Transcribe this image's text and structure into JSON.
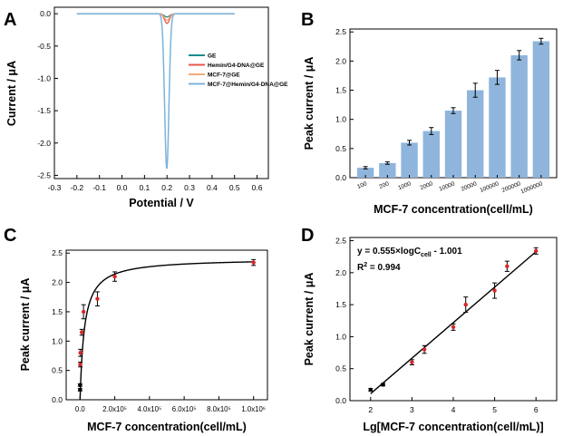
{
  "chart_data": [
    {
      "panel": "A",
      "type": "line",
      "xlabel": "Potential / V",
      "ylabel": "Current / μA",
      "xlim": [
        -0.3,
        0.65
      ],
      "ylim": [
        -2.55,
        0.1
      ],
      "xticks": [
        -0.3,
        -0.2,
        -0.1,
        0.0,
        0.1,
        0.2,
        0.3,
        0.4,
        0.5,
        0.6
      ],
      "xtick_labels": [
        "-0.3",
        "-0.2",
        "-0.1",
        "0.0",
        "0.1",
        "0.2",
        "0.3",
        "0.4",
        "0.5",
        "0.6"
      ],
      "yticks": [
        0.0,
        -0.5,
        -1.0,
        -1.5,
        -2.0,
        -2.5
      ],
      "ytick_labels": [
        "0.0",
        "-0.5",
        "-1.0",
        "-1.5",
        "-2.0",
        "-2.5"
      ],
      "legend_position": "right",
      "series": [
        {
          "name": "GE",
          "color": "#1f8a8a",
          "x_range": [
            -0.2,
            0.5
          ],
          "peak_x": 0.2,
          "peak_y": -0.05,
          "width": 0.012
        },
        {
          "name": "Hemin/G4-DNA@GE",
          "color": "#e8564b",
          "x_range": [
            -0.2,
            0.5
          ],
          "peak_x": 0.2,
          "peak_y": -0.15,
          "width": 0.011
        },
        {
          "name": "MCF-7@GE",
          "color": "#f4a978",
          "x_range": [
            -0.2,
            0.5
          ],
          "peak_x": 0.2,
          "peak_y": -0.1,
          "width": 0.011
        },
        {
          "name": "MCF-7@Hemin/G4-DNA@GE",
          "color": "#7ab3dd",
          "x_range": [
            -0.2,
            0.5
          ],
          "peak_x": 0.199,
          "peak_y": -2.4,
          "width": 0.0095
        }
      ]
    },
    {
      "panel": "B",
      "type": "bar",
      "xlabel": "MCF-7 concentration(cell/mL)",
      "ylabel": "Peak current / μA",
      "ylim": [
        0,
        2.55
      ],
      "yticks": [
        0.0,
        0.5,
        1.0,
        1.5,
        2.0,
        2.5
      ],
      "ytick_labels": [
        "0.0",
        "0.5",
        "1.0",
        "1.5",
        "2.0",
        "2.5"
      ],
      "categories": [
        "100",
        "200",
        "1000",
        "2000",
        "10000",
        "20000",
        "100000",
        "200000",
        "1000000"
      ],
      "values": [
        0.17,
        0.25,
        0.6,
        0.8,
        1.15,
        1.5,
        1.72,
        2.1,
        2.34
      ],
      "errors": [
        0.02,
        0.02,
        0.04,
        0.06,
        0.05,
        0.12,
        0.12,
        0.08,
        0.05
      ],
      "bar_color": "#8fb5dc"
    },
    {
      "panel": "C",
      "type": "scatter",
      "xlabel": "MCF-7 concentration(cell/mL)",
      "ylabel": "Peak current / μA",
      "xlim": [
        -80000,
        1080000
      ],
      "ylim": [
        0,
        2.55
      ],
      "xticks": [
        0,
        200000,
        400000,
        600000,
        800000,
        1000000
      ],
      "xtick_labels": [
        "0.0",
        "2.0x10⁵",
        "4.0x10⁵",
        "6.0x10⁵",
        "8.0x10⁵",
        "1.0x10⁶"
      ],
      "yticks": [
        0.0,
        0.5,
        1.0,
        1.5,
        2.0,
        2.5
      ],
      "ytick_labels": [
        "0.0",
        "0.5",
        "1.0",
        "1.5",
        "2.0",
        "2.5"
      ],
      "x": [
        100,
        200,
        1000,
        2000,
        10000,
        20000,
        100000,
        200000,
        1000000
      ],
      "y": [
        0.17,
        0.25,
        0.6,
        0.8,
        1.15,
        1.5,
        1.72,
        2.1,
        2.34
      ],
      "errors": [
        0.02,
        0.02,
        0.04,
        0.06,
        0.05,
        0.12,
        0.12,
        0.08,
        0.05
      ],
      "fit": {
        "type": "hyperbolic",
        "vmax": 2.41,
        "k": 25000
      }
    },
    {
      "panel": "D",
      "type": "scatter",
      "xlabel": "Lg[MCF-7 concentration(cell/mL)]",
      "ylabel": "Peak current / μA",
      "xlim": [
        1.5,
        6.5
      ],
      "ylim": [
        0,
        2.55
      ],
      "xticks": [
        2,
        3,
        4,
        5,
        6
      ],
      "xtick_labels": [
        "2",
        "3",
        "4",
        "5",
        "6"
      ],
      "yticks": [
        0.0,
        0.5,
        1.0,
        1.5,
        2.0,
        2.5
      ],
      "ytick_labels": [
        "0.0",
        "0.5",
        "1.0",
        "1.5",
        "2.0",
        "2.5"
      ],
      "x": [
        2,
        2.301,
        3,
        3.301,
        4,
        4.301,
        5,
        5.301,
        6
      ],
      "y": [
        0.17,
        0.25,
        0.6,
        0.8,
        1.15,
        1.5,
        1.72,
        2.1,
        2.34
      ],
      "errors": [
        0.02,
        0.02,
        0.04,
        0.06,
        0.05,
        0.12,
        0.12,
        0.08,
        0.05
      ],
      "fit": {
        "slope": 0.555,
        "intercept": -1.001,
        "x_range": [
          2,
          6
        ]
      },
      "annotations": {
        "equation_prefix": "y = 0.555×logC",
        "equation_sub": "cell",
        "equation_suffix": " - 1.001",
        "r2_prefix": "R",
        "r2_sup": "2",
        "r2_suffix": " = 0.994"
      }
    }
  ]
}
